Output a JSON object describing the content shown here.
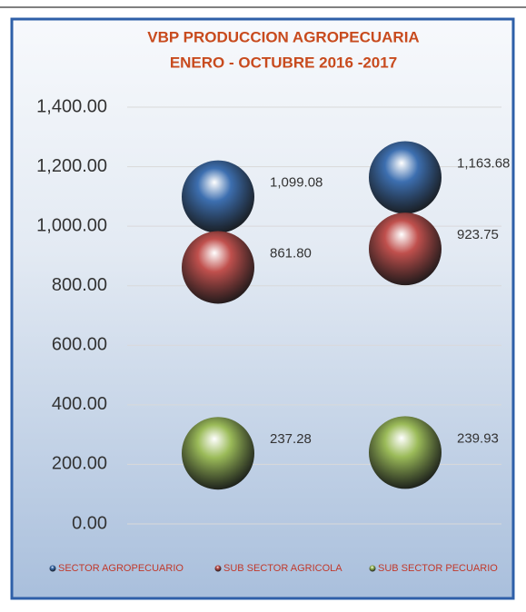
{
  "chart_data": {
    "type": "scatter",
    "title": "VBP PRODUCCION AGROPECUARIA",
    "subtitle": "ENERO - OCTUBRE 2016 -2017",
    "categories": [
      null,
      null
    ],
    "series": [
      {
        "name": "SECTOR AGROPECUARIO",
        "color": "#3d6fb0",
        "values": [
          1099.08,
          1163.68
        ],
        "value_labels": [
          "1,099.08",
          "1,163.68"
        ]
      },
      {
        "name": "SUB SECTOR AGRICOLA",
        "color": "#c0504d",
        "values": [
          861.8,
          923.75
        ],
        "value_labels": [
          "861.80",
          "923.75"
        ]
      },
      {
        "name": "SUB SECTOR PECUARIO",
        "color": "#9bbb59",
        "values": [
          237.28,
          239.93
        ],
        "value_labels": [
          "237.28",
          "239.93"
        ]
      }
    ],
    "ylim": [
      0,
      1400
    ],
    "yticks": [
      {
        "value": 0,
        "label": "0.00"
      },
      {
        "value": 200,
        "label": "200.00"
      },
      {
        "value": 400,
        "label": "400.00"
      },
      {
        "value": 600,
        "label": "600.00"
      },
      {
        "value": 800,
        "label": "800.00"
      },
      {
        "value": 1000,
        "label": "1,000.00"
      },
      {
        "value": 1200,
        "label": "1,200.00"
      },
      {
        "value": 1400,
        "label": "1,400.00"
      }
    ],
    "grid": true,
    "legend": "bottom"
  }
}
